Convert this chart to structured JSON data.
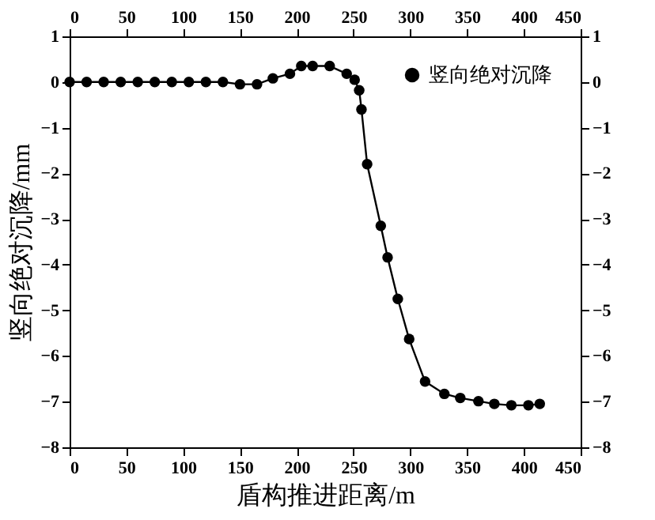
{
  "chart_data": {
    "type": "line",
    "xlabel": "盾构推进距离/m",
    "ylabel": "竖向绝对沉降/mm",
    "x": [
      0,
      15,
      30,
      45,
      60,
      75,
      90,
      105,
      120,
      135,
      150,
      165,
      179,
      194,
      204,
      214,
      229,
      244,
      251,
      255,
      257,
      262,
      274,
      280,
      289,
      299,
      313,
      330,
      344,
      360,
      374,
      389,
      404,
      414
    ],
    "series": [
      {
        "name": "竖向绝对沉降",
        "color": "#000000",
        "values": [
          0,
          0,
          0,
          0,
          0,
          0,
          0,
          0,
          0,
          0,
          -0.05,
          -0.05,
          0.08,
          0.18,
          0.35,
          0.35,
          0.35,
          0.18,
          0.05,
          -0.18,
          -0.6,
          -1.8,
          -3.15,
          -3.84,
          -4.75,
          -5.63,
          -6.56,
          -6.83,
          -6.92,
          -6.99,
          -7.05,
          -7.08,
          -7.08,
          -7.05
        ]
      }
    ],
    "xlim": [
      0,
      450
    ],
    "xticks": [
      0,
      50,
      100,
      150,
      200,
      250,
      300,
      350,
      400,
      450
    ],
    "x2lim": [
      0,
      450
    ],
    "x2ticks": [
      0,
      50,
      100,
      150,
      200,
      250,
      300,
      350,
      400,
      450
    ],
    "ylim": [
      -8,
      1
    ],
    "yticks": [
      -8,
      -7,
      -6,
      -5,
      -4,
      -3,
      -2,
      -1,
      0,
      1
    ],
    "y2lim": [
      -8,
      1
    ],
    "y2ticks": [
      -8,
      -7,
      -6,
      -5,
      -4,
      -3,
      -2,
      -1,
      0,
      1
    ],
    "marker": "circle",
    "line_style": "solid",
    "legend": "top right",
    "grid": false
  }
}
